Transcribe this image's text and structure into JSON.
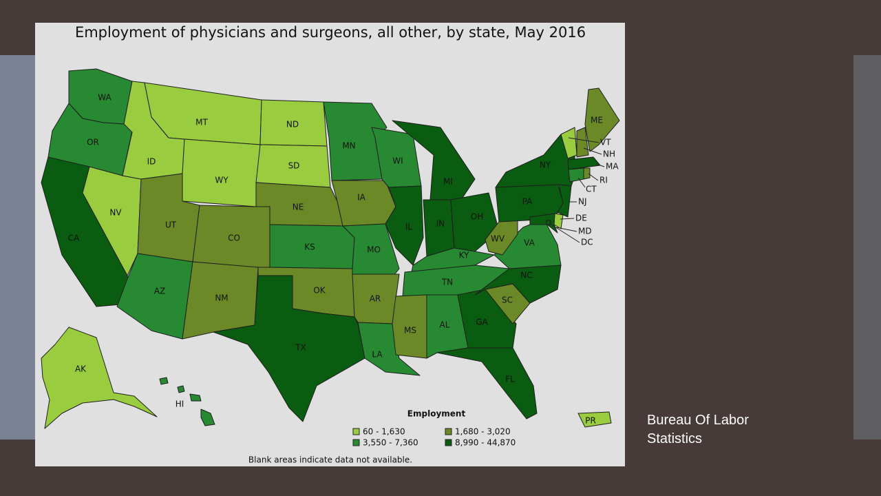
{
  "title": "Employment of physicians and surgeons, all other, by state, May 2016",
  "states": [
    {
      "label": "WA",
      "class": 2
    },
    {
      "label": "OR",
      "class": 2
    },
    {
      "label": "CA",
      "class": 3
    },
    {
      "label": "NV",
      "class": 0
    },
    {
      "label": "ID",
      "class": 0
    },
    {
      "label": "MT",
      "class": 0
    },
    {
      "label": "WY",
      "class": 0
    },
    {
      "label": "ND",
      "class": 0
    },
    {
      "label": "SD",
      "class": 0
    },
    {
      "label": "NE",
      "class": 1
    },
    {
      "label": "UT",
      "class": 1
    },
    {
      "label": "CO",
      "class": 1
    },
    {
      "label": "AZ",
      "class": 2
    },
    {
      "label": "NM",
      "class": 1
    },
    {
      "label": "KS",
      "class": 2
    },
    {
      "label": "OK",
      "class": 1
    },
    {
      "label": "TX",
      "class": 3
    },
    {
      "label": "MN",
      "class": 2
    },
    {
      "label": "IA",
      "class": 1
    },
    {
      "label": "MO",
      "class": 2
    },
    {
      "label": "AR",
      "class": 1
    },
    {
      "label": "LA",
      "class": 2
    },
    {
      "label": "WI",
      "class": 2
    },
    {
      "label": "IL",
      "class": 3
    },
    {
      "label": "MI",
      "class": 3
    },
    {
      "label": "IN",
      "class": 3
    },
    {
      "label": "OH",
      "class": 3
    },
    {
      "label": "KY",
      "class": 2
    },
    {
      "label": "TN",
      "class": 2
    },
    {
      "label": "MS",
      "class": 1
    },
    {
      "label": "AL",
      "class": 2
    },
    {
      "label": "GA",
      "class": 3
    },
    {
      "label": "FL",
      "class": 3
    },
    {
      "label": "SC",
      "class": 1
    },
    {
      "label": "NC",
      "class": 3
    },
    {
      "label": "VA",
      "class": 2
    },
    {
      "label": "WV",
      "class": 1
    },
    {
      "label": "PA",
      "class": 3
    },
    {
      "label": "NY",
      "class": 3
    },
    {
      "label": "NJ",
      "class": 3
    },
    {
      "label": "DE",
      "class": 0
    },
    {
      "label": "MD",
      "class": 3
    },
    {
      "label": "DC",
      "class": 3
    },
    {
      "label": "VT",
      "class": 0
    },
    {
      "label": "NH",
      "class": 1
    },
    {
      "label": "ME",
      "class": 1
    },
    {
      "label": "MA",
      "class": 3
    },
    {
      "label": "CT",
      "class": 2
    },
    {
      "label": "RI",
      "class": 1
    },
    {
      "label": "AK",
      "class": 0
    },
    {
      "label": "HI",
      "class": 2
    },
    {
      "label": "PR",
      "class": 0
    }
  ],
  "legend": {
    "title": "Employment",
    "classes": [
      {
        "label": "60 - 1,630",
        "color": "#99cc3f"
      },
      {
        "label": "1,680 - 3,020",
        "color": "#6b8a27"
      },
      {
        "label": "3,550 - 7,360",
        "color": "#278a32"
      },
      {
        "label": "8,990 - 44,870",
        "color": "#0a5c10"
      }
    ]
  },
  "note": "Blank areas indicate data not available.",
  "caption": "Bureau Of Labor Statistics"
}
